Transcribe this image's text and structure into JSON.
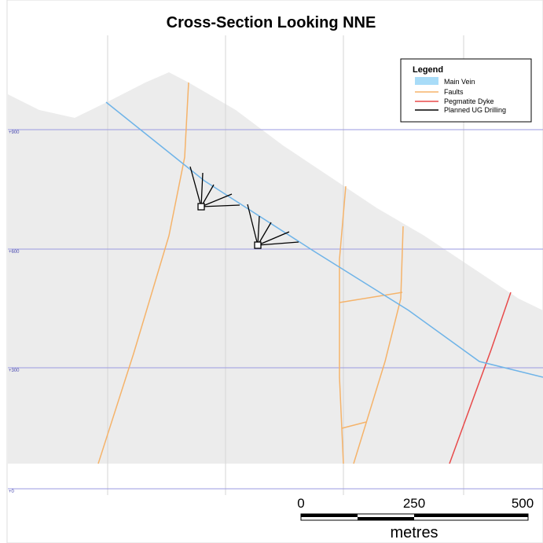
{
  "header": {
    "title": "Cross-Section Looking NNE"
  },
  "legend": {
    "title": "Legend",
    "items": [
      "Main Vein",
      "Faults",
      "Pegmatite Dyke",
      "Planned UG Drilling"
    ]
  },
  "elevations": [
    "+900",
    "+600",
    "+300",
    "+0"
  ],
  "scale_bar": {
    "labels": [
      "0",
      "250",
      "500"
    ],
    "unit": "metres"
  }
}
